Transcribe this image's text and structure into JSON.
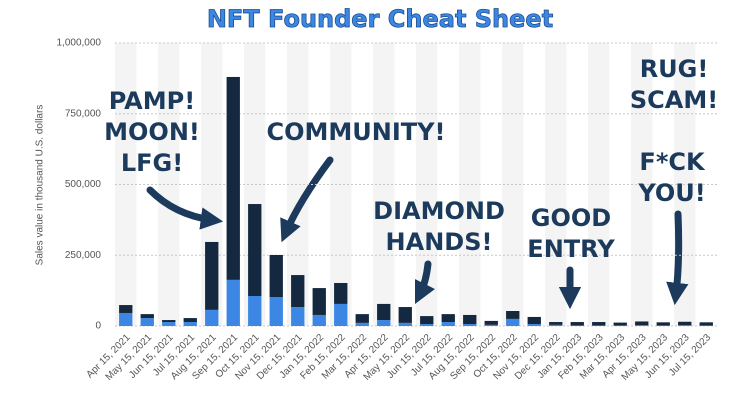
{
  "chart_data": {
    "type": "bar",
    "stacked": true,
    "title": "NFT Founder Cheat Sheet",
    "y_label": "Sales value in thousand U.S. dollars",
    "categories": [
      "Apr 15, 2021",
      "May 15, 2021",
      "Jun 15, 2021",
      "Jul 15, 2021",
      "Aug 15, 2021",
      "Sep 15, 2021",
      "Oct 15, 2021",
      "Nov 15, 2021",
      "Dec 15, 2021",
      "Jan 15, 2022",
      "Feb 15, 2022",
      "Mar 15, 2022",
      "Apr 15, 2022",
      "May 15, 2022",
      "Jun 15, 2022",
      "Jul 15, 2022",
      "Aug 15, 2022",
      "Sep 15, 2022",
      "Oct 15, 2022",
      "Nov 15, 2022",
      "Dec 15, 2022",
      "Jan 15, 2023",
      "Feb 15, 2023",
      "Mar 15, 2023",
      "Apr 15, 2023",
      "May 15, 2023",
      "Jun 15, 2023",
      "Jul 15, 2023"
    ],
    "series": [
      {
        "color": "#3d87e4",
        "values": [
          46000,
          28000,
          14000,
          14000,
          57000,
          163000,
          106000,
          102000,
          67000,
          39000,
          78000,
          11000,
          21000,
          11000,
          7000,
          14000,
          7000,
          4000,
          25000,
          7000,
          4000,
          2000,
          2000,
          2000,
          3000,
          2000,
          3000,
          2000
        ]
      },
      {
        "color": "#14283f",
        "values": [
          28000,
          14000,
          7000,
          14000,
          240000,
          717000,
          325000,
          149000,
          113000,
          95000,
          74000,
          31000,
          57000,
          56000,
          28000,
          28000,
          32000,
          14000,
          28000,
          25000,
          10000,
          12000,
          12000,
          10000,
          13000,
          11000,
          12000,
          11000
        ]
      }
    ],
    "ylim": [
      0,
      1000000
    ],
    "yticks": [
      0,
      {
        "value": 250000,
        "label": "250,000"
      },
      {
        "value": 500000,
        "label": "500,000"
      },
      {
        "value": 750000,
        "label": "750,000"
      },
      {
        "value": 1000000,
        "label": "1,000,000"
      }
    ],
    "grid": true,
    "annotations": [
      [
        "PAMP!",
        "MOON!",
        "LFG!"
      ],
      [
        "COMMUNITY!"
      ],
      [
        "DIAMOND",
        "HANDS!"
      ],
      [
        "GOOD",
        "ENTRY"
      ],
      [
        "RUG!",
        "SCAM!"
      ],
      [
        "F*CK",
        "YOU!"
      ]
    ]
  }
}
